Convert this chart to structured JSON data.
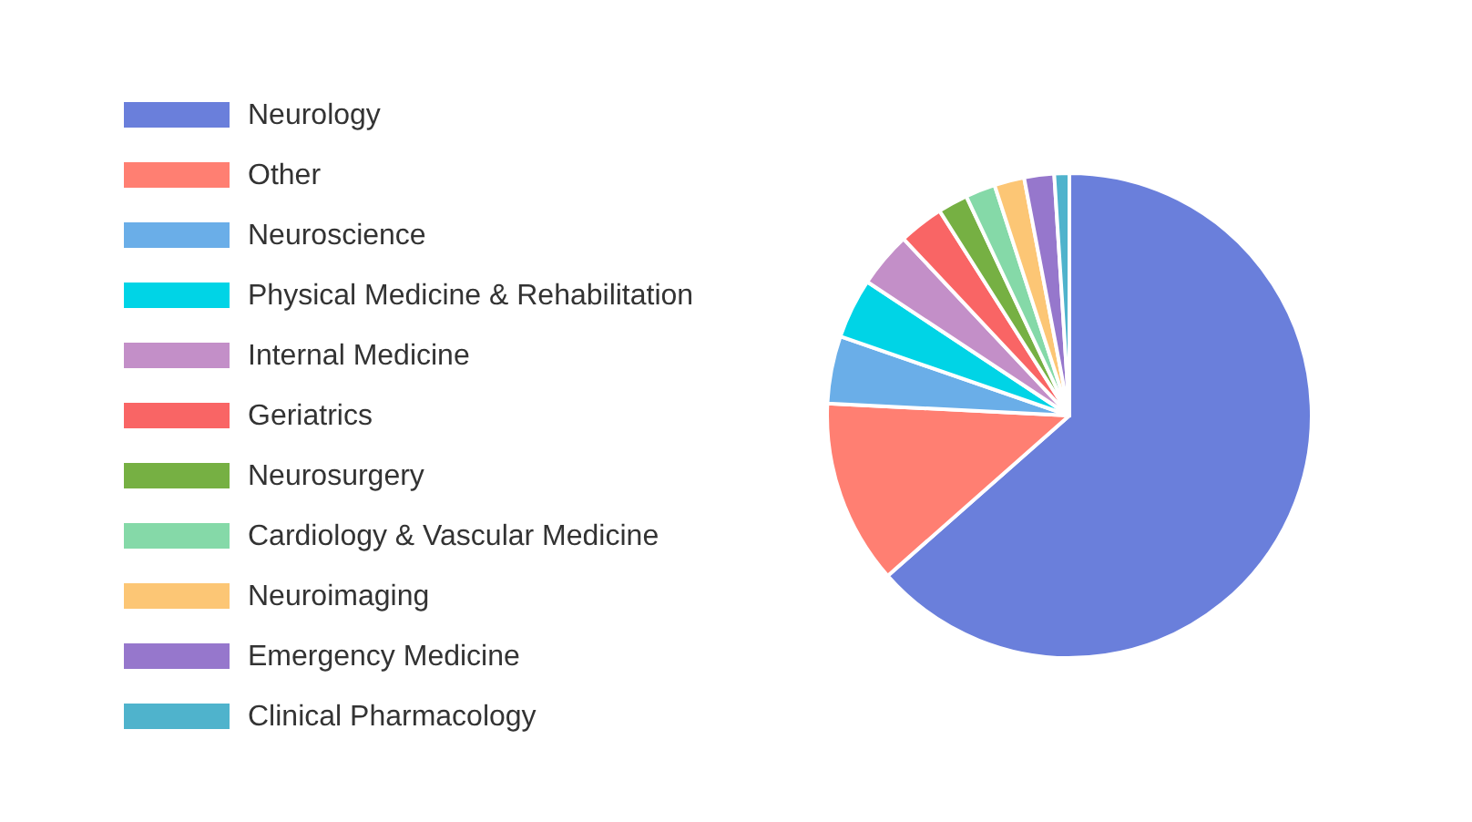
{
  "chart_data": {
    "type": "pie",
    "legend": "left",
    "categories": [
      "Neurology",
      "Other",
      "Neuroscience",
      "Physical Medicine & Rehabilitation",
      "Internal Medicine",
      "Geriatrics",
      "Neurosurgery",
      "Cardiology & Vascular Medicine",
      "Neuroimaging",
      "Emergency Medicine",
      "Clinical Pharmacology"
    ],
    "values": [
      63.5,
      12.3,
      4.5,
      4,
      3.7,
      3,
      2,
      2,
      2,
      2,
      1
    ],
    "colors": [
      "#6a7fdb",
      "#ff7f72",
      "#6aaee8",
      "#00d4e6",
      "#c38fc8",
      "#f96565",
      "#76b043",
      "#85d9a8",
      "#fcc675",
      "#9677cc",
      "#4fb3cc"
    ]
  }
}
